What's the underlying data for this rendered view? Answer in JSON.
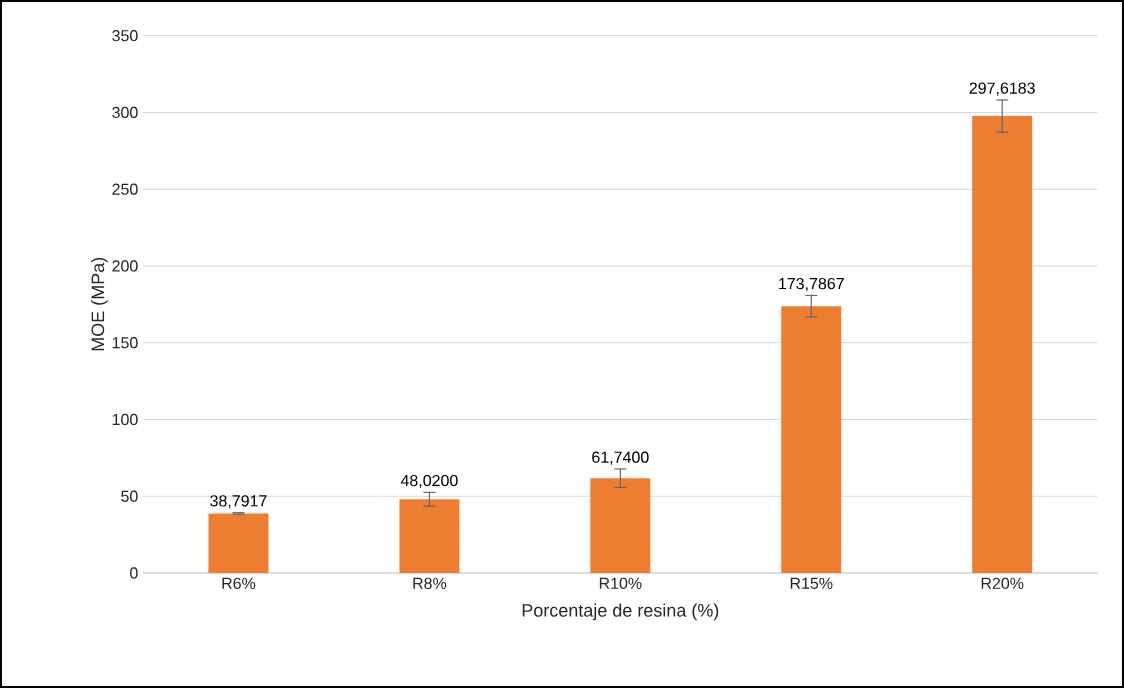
{
  "chart_data": {
    "type": "bar",
    "xlabel": "Porcentaje de resina (%)",
    "ylabel": "MOE (MPa)",
    "categories": [
      "R6%",
      "R8%",
      "R10%",
      "R15%",
      "R20%"
    ],
    "values": [
      38.7917,
      48.02,
      61.74,
      173.7867,
      297.6183
    ],
    "errors": [
      0.5,
      4.5,
      6,
      7,
      10.5
    ],
    "value_labels": [
      "38,7917",
      "48,0200",
      "61,7400",
      "173,7867",
      "297,6183"
    ],
    "color": "#ed7d31",
    "ylim": [
      0,
      350
    ],
    "yticks": [
      0,
      50,
      100,
      150,
      200,
      250,
      300,
      350
    ],
    "grid": "y"
  }
}
